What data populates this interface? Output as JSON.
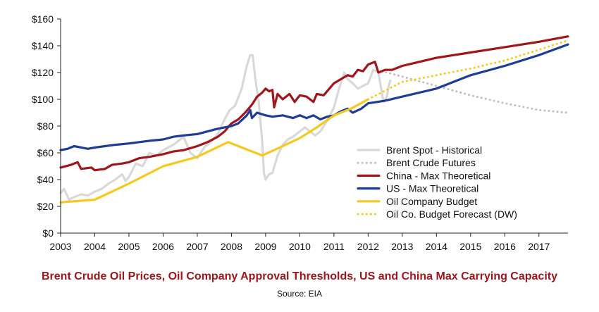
{
  "chart_data": {
    "type": "line",
    "title": "Brent Crude Oil Prices, Oil Company Approval Thresholds, US and China Max Carrying Capacity",
    "source": "Source: EIA",
    "xlabel": "",
    "ylabel": "",
    "xlim": [
      2003,
      2017.85
    ],
    "ylim": [
      0,
      160
    ],
    "x_ticks": [
      {
        "value": 2003,
        "label": "2003"
      },
      {
        "value": 2004,
        "label": "2004"
      },
      {
        "value": 2005,
        "label": "2005"
      },
      {
        "value": 2006,
        "label": "2006"
      },
      {
        "value": 2007,
        "label": "2007"
      },
      {
        "value": 2008,
        "label": "2008"
      },
      {
        "value": 2009,
        "label": "2009"
      },
      {
        "value": 2010,
        "label": "2010"
      },
      {
        "value": 2011,
        "label": "2011"
      },
      {
        "value": 2012,
        "label": "2012"
      },
      {
        "value": 2013,
        "label": "2013"
      },
      {
        "value": 2014,
        "label": "2014"
      },
      {
        "value": 2015,
        "label": "2015"
      },
      {
        "value": 2016,
        "label": "2016"
      },
      {
        "value": 2017,
        "label": "2017"
      }
    ],
    "y_ticks": [
      {
        "value": 0,
        "label": "$0"
      },
      {
        "value": 20,
        "label": "$20"
      },
      {
        "value": 40,
        "label": "$40"
      },
      {
        "value": 60,
        "label": "$60"
      },
      {
        "value": 80,
        "label": "$80"
      },
      {
        "value": 100,
        "label": "$100"
      },
      {
        "value": 120,
        "label": "$120"
      },
      {
        "value": 140,
        "label": "$140"
      },
      {
        "value": 160,
        "label": "$160"
      }
    ],
    "grid": false,
    "legend_position": "bottom-right",
    "series": [
      {
        "name": "Brent Spot - Historical",
        "color": "#d9d9d9",
        "style": "solid",
        "points": [
          [
            2003,
            30
          ],
          [
            2003.1,
            33
          ],
          [
            2003.25,
            25
          ],
          [
            2003.4,
            27
          ],
          [
            2003.6,
            29
          ],
          [
            2003.8,
            28
          ],
          [
            2004,
            31
          ],
          [
            2004.2,
            33
          ],
          [
            2004.4,
            37
          ],
          [
            2004.6,
            40
          ],
          [
            2004.8,
            44
          ],
          [
            2004.9,
            39
          ],
          [
            2005,
            42
          ],
          [
            2005.2,
            52
          ],
          [
            2005.4,
            50
          ],
          [
            2005.6,
            60
          ],
          [
            2005.8,
            58
          ],
          [
            2006,
            62
          ],
          [
            2006.3,
            66
          ],
          [
            2006.6,
            72
          ],
          [
            2006.8,
            60
          ],
          [
            2007,
            56
          ],
          [
            2007.2,
            64
          ],
          [
            2007.4,
            68
          ],
          [
            2007.6,
            74
          ],
          [
            2007.8,
            85
          ],
          [
            2007.95,
            92
          ],
          [
            2008.1,
            95
          ],
          [
            2008.3,
            108
          ],
          [
            2008.45,
            125
          ],
          [
            2008.55,
            133
          ],
          [
            2008.62,
            133
          ],
          [
            2008.7,
            115
          ],
          [
            2008.8,
            98
          ],
          [
            2008.9,
            68
          ],
          [
            2008.95,
            45
          ],
          [
            2009,
            40
          ],
          [
            2009.1,
            44
          ],
          [
            2009.2,
            45
          ],
          [
            2009.35,
            58
          ],
          [
            2009.5,
            66
          ],
          [
            2009.65,
            70
          ],
          [
            2009.8,
            72
          ],
          [
            2010,
            76
          ],
          [
            2010.15,
            79
          ],
          [
            2010.3,
            76
          ],
          [
            2010.45,
            73
          ],
          [
            2010.6,
            76
          ],
          [
            2010.8,
            84
          ],
          [
            2011,
            94
          ],
          [
            2011.15,
            108
          ],
          [
            2011.3,
            120
          ],
          [
            2011.4,
            115
          ],
          [
            2011.55,
            112
          ],
          [
            2011.7,
            108
          ],
          [
            2011.85,
            110
          ],
          [
            2012,
            112
          ],
          [
            2012.15,
            122
          ],
          [
            2012.3,
            120
          ],
          [
            2012.45,
            98
          ],
          [
            2012.55,
            102
          ],
          [
            2012.6,
            110
          ],
          [
            2012.65,
            114
          ]
        ]
      },
      {
        "name": "Brent Crude Futures",
        "color": "#bfbfbf",
        "style": "dotted",
        "points": [
          [
            2012.4,
            121
          ],
          [
            2013,
            117
          ],
          [
            2014,
            110
          ],
          [
            2015,
            103
          ],
          [
            2016,
            97
          ],
          [
            2017,
            92
          ],
          [
            2017.85,
            90
          ]
        ]
      },
      {
        "name": "China - Max Theoretical",
        "color": "#a0161b",
        "style": "solid",
        "points": [
          [
            2003,
            49
          ],
          [
            2003.3,
            51
          ],
          [
            2003.5,
            53
          ],
          [
            2003.6,
            48
          ],
          [
            2003.9,
            49
          ],
          [
            2004,
            47
          ],
          [
            2004.3,
            48
          ],
          [
            2004.5,
            51
          ],
          [
            2004.8,
            52
          ],
          [
            2005,
            53
          ],
          [
            2005.3,
            56
          ],
          [
            2005.6,
            57
          ],
          [
            2006,
            59
          ],
          [
            2006.3,
            61
          ],
          [
            2006.6,
            62
          ],
          [
            2007,
            65
          ],
          [
            2007.3,
            68
          ],
          [
            2007.6,
            72
          ],
          [
            2007.8,
            76
          ],
          [
            2008,
            82
          ],
          [
            2008.2,
            85
          ],
          [
            2008.4,
            90
          ],
          [
            2008.6,
            96
          ],
          [
            2008.75,
            102
          ],
          [
            2008.9,
            105
          ],
          [
            2009,
            108
          ],
          [
            2009.1,
            106
          ],
          [
            2009.2,
            107
          ],
          [
            2009.25,
            94
          ],
          [
            2009.35,
            104
          ],
          [
            2009.5,
            100
          ],
          [
            2009.7,
            104
          ],
          [
            2009.85,
            98
          ],
          [
            2010,
            103
          ],
          [
            2010.2,
            102
          ],
          [
            2010.4,
            98
          ],
          [
            2010.5,
            104
          ],
          [
            2010.7,
            103
          ],
          [
            2010.8,
            106
          ],
          [
            2011,
            112
          ],
          [
            2011.2,
            115
          ],
          [
            2011.4,
            118
          ],
          [
            2011.55,
            117
          ],
          [
            2011.7,
            122
          ],
          [
            2011.85,
            121
          ],
          [
            2012,
            126
          ],
          [
            2012.2,
            128
          ],
          [
            2012.3,
            120
          ],
          [
            2012.5,
            122
          ],
          [
            2012.7,
            122
          ],
          [
            2013,
            125
          ],
          [
            2013.5,
            128
          ],
          [
            2014,
            131
          ],
          [
            2015,
            135
          ],
          [
            2016,
            139
          ],
          [
            2017,
            143
          ],
          [
            2017.85,
            147
          ]
        ]
      },
      {
        "name": "US - Max Theoretical",
        "color": "#1f3c99",
        "style": "solid",
        "points": [
          [
            2003,
            62
          ],
          [
            2003.2,
            63
          ],
          [
            2003.4,
            65
          ],
          [
            2003.6,
            64
          ],
          [
            2003.8,
            63
          ],
          [
            2004,
            64
          ],
          [
            2004.3,
            65
          ],
          [
            2004.6,
            66
          ],
          [
            2005,
            67
          ],
          [
            2005.3,
            68
          ],
          [
            2005.6,
            69
          ],
          [
            2006,
            70
          ],
          [
            2006.3,
            72
          ],
          [
            2006.6,
            73
          ],
          [
            2007,
            74
          ],
          [
            2007.3,
            76
          ],
          [
            2007.6,
            78
          ],
          [
            2008,
            80
          ],
          [
            2008.2,
            82
          ],
          [
            2008.45,
            88
          ],
          [
            2008.55,
            92
          ],
          [
            2008.6,
            86
          ],
          [
            2008.75,
            90
          ],
          [
            2009,
            88
          ],
          [
            2009.2,
            87
          ],
          [
            2009.5,
            88
          ],
          [
            2009.8,
            86
          ],
          [
            2010,
            88
          ],
          [
            2010.2,
            86
          ],
          [
            2010.4,
            88
          ],
          [
            2010.6,
            85
          ],
          [
            2010.8,
            87
          ],
          [
            2011,
            88
          ],
          [
            2011.2,
            91
          ],
          [
            2011.4,
            93
          ],
          [
            2011.55,
            90
          ],
          [
            2011.8,
            93
          ],
          [
            2012,
            97
          ],
          [
            2012.5,
            99
          ],
          [
            2013,
            102
          ],
          [
            2014,
            108
          ],
          [
            2015,
            118
          ],
          [
            2016,
            125
          ],
          [
            2017,
            133
          ],
          [
            2017.85,
            141
          ]
        ]
      },
      {
        "name": "Oil Company Budget",
        "color": "#f7c91e",
        "style": "solid",
        "points": [
          [
            2003,
            23
          ],
          [
            2004,
            25
          ],
          [
            2005,
            37
          ],
          [
            2006,
            50
          ],
          [
            2007,
            57
          ],
          [
            2007.9,
            68
          ],
          [
            2008.9,
            58
          ],
          [
            2009.5,
            65
          ],
          [
            2010,
            71
          ],
          [
            2010.5,
            79
          ],
          [
            2011,
            88
          ],
          [
            2011.5,
            93
          ],
          [
            2012,
            100
          ]
        ]
      },
      {
        "name": "Oil Co. Budget Forecast (DW)",
        "color": "#f7c91e",
        "style": "dotted",
        "points": [
          [
            2012,
            100
          ],
          [
            2013,
            113
          ],
          [
            2014,
            118
          ],
          [
            2015,
            123
          ],
          [
            2016,
            129
          ],
          [
            2017,
            137
          ],
          [
            2017.85,
            144
          ]
        ]
      }
    ]
  }
}
